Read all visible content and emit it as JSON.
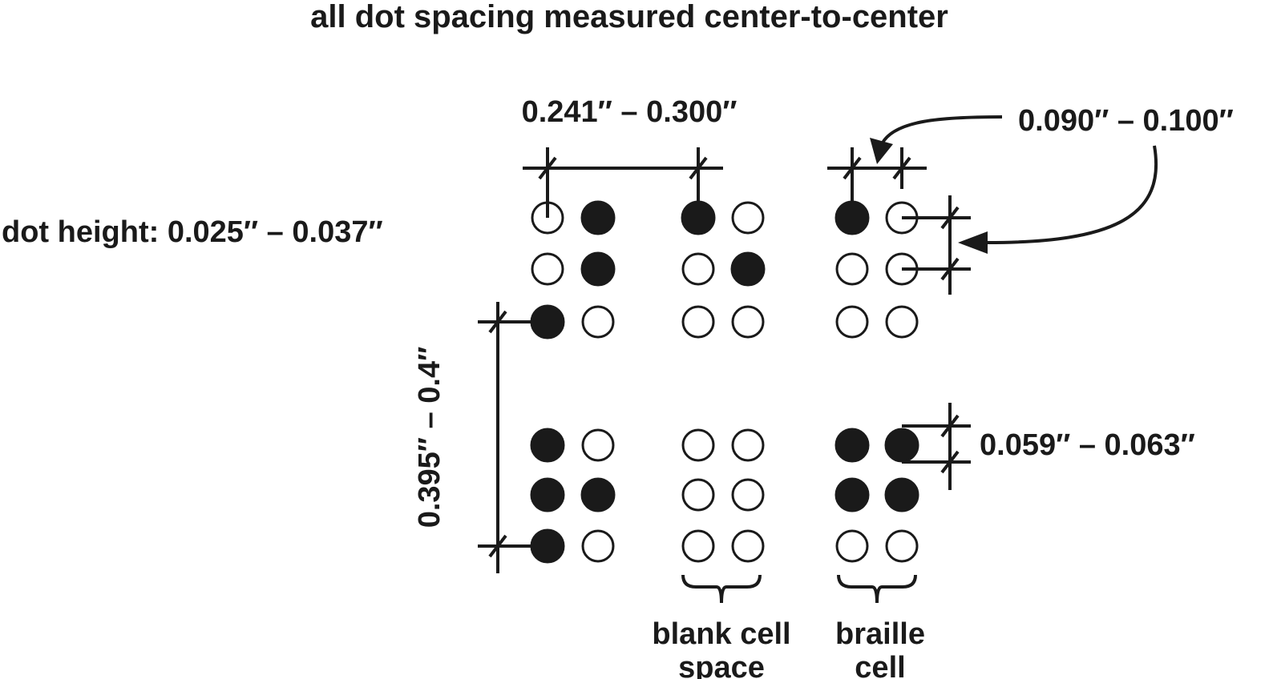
{
  "title": "all dot spacing measured center-to-center",
  "labels": {
    "dot_height": "dot height: 0.025″ – 0.037″",
    "cell_spacing": "0.241″ – 0.300″",
    "dot_spacing": "0.090″ – 0.100″",
    "line_spacing": "0.395″ – 0.4″",
    "dot_base": "0.059″ – 0.063″"
  },
  "cell_labels": {
    "blank_line1": "blank cell",
    "blank_line2": "space",
    "braille_line1": "braille",
    "braille_line2": "cell"
  },
  "cells": [
    {
      "row": 0,
      "col": 0,
      "dots": [
        0,
        1,
        0,
        1,
        1,
        0
      ]
    },
    {
      "row": 0,
      "col": 1,
      "dots": [
        1,
        0,
        0,
        1,
        0,
        0
      ]
    },
    {
      "row": 0,
      "col": 2,
      "dots": [
        1,
        0,
        0,
        0,
        0,
        0
      ]
    },
    {
      "row": 1,
      "col": 0,
      "dots": [
        1,
        0,
        1,
        1,
        1,
        0
      ]
    },
    {
      "row": 1,
      "col": 1,
      "dots": [
        0,
        0,
        0,
        0,
        0,
        0
      ]
    },
    {
      "row": 1,
      "col": 2,
      "dots": [
        1,
        1,
        1,
        1,
        0,
        0
      ]
    }
  ]
}
